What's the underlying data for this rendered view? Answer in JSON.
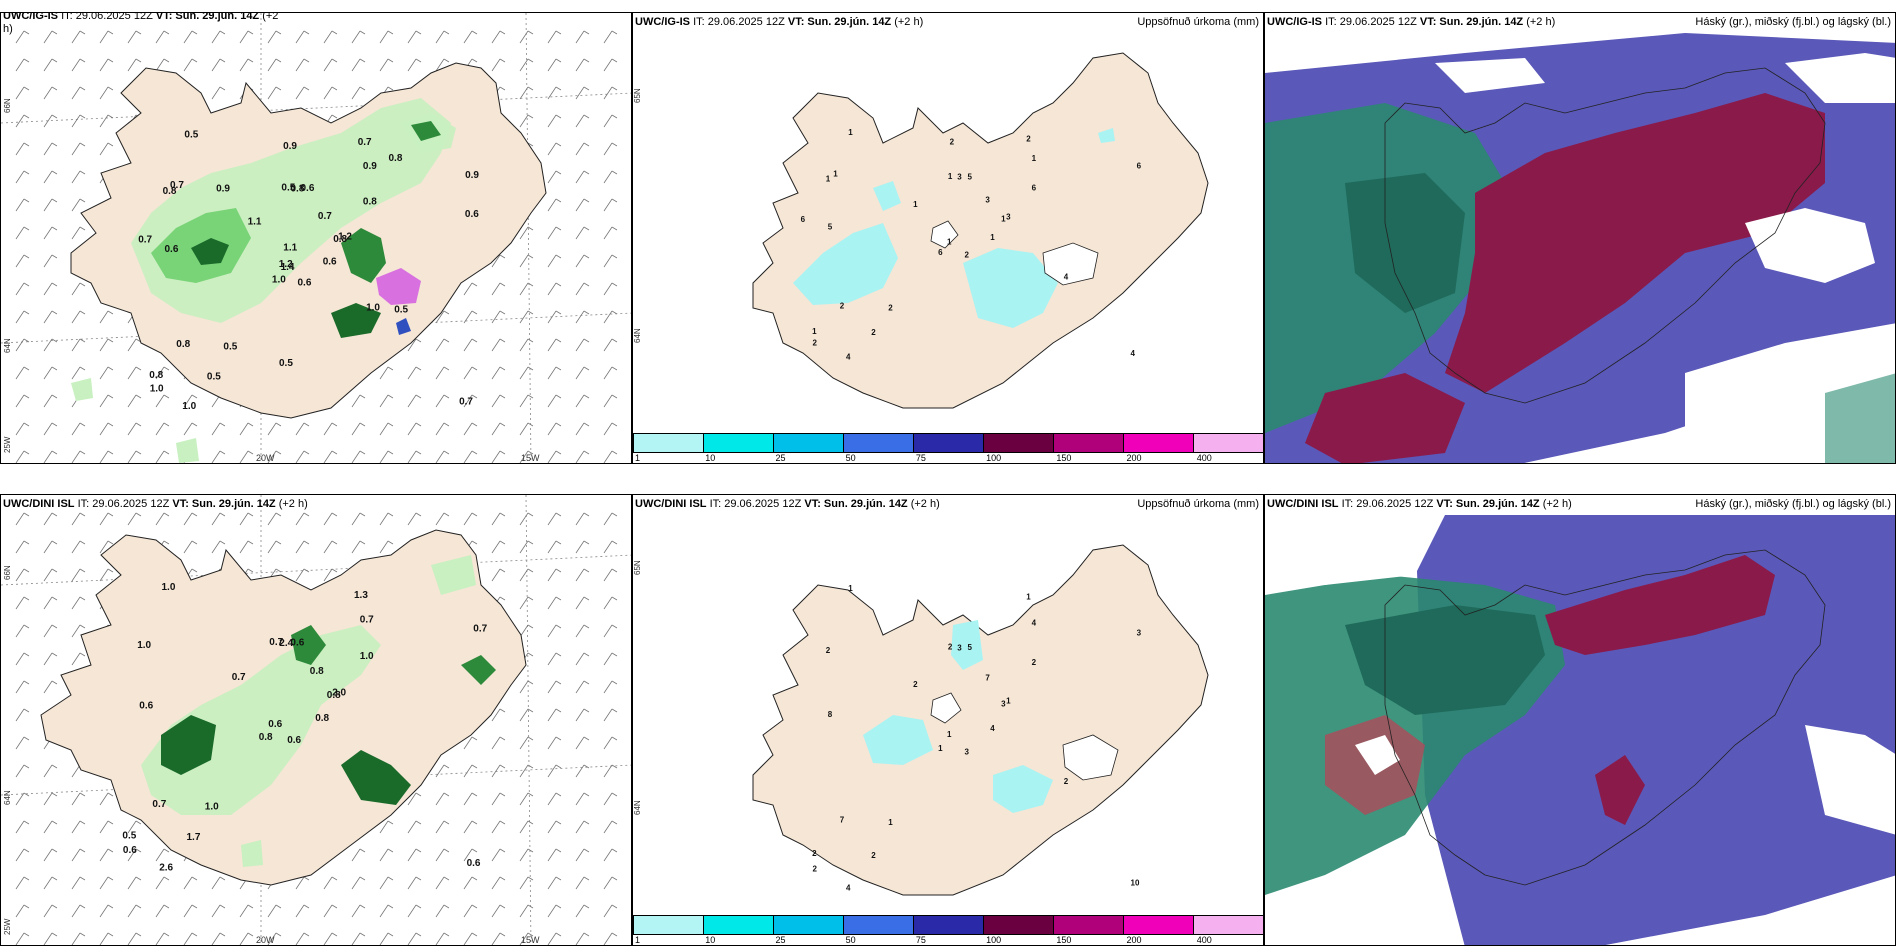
{
  "panels": {
    "p1": {
      "source": "UWC/IG-IS",
      "it": "IT: 29.06.2025 12Z",
      "vt": "VT: Sun. 29.jún. 14Z",
      "lead": "(+2",
      "lead2": "h)"
    },
    "p2": {
      "source": "UWC/IG-IS",
      "it": "IT: 29.06.2025 12Z",
      "vt": "VT: Sun. 29.jún. 14Z",
      "lead": "(+2 h)",
      "right": "Uppsöfnuð úrkoma (mm)"
    },
    "p3": {
      "source": "UWC/IG-IS",
      "it": "IT: 29.06.2025 12Z",
      "vt": "VT: Sun. 29.jún. 14Z",
      "lead": "(+2 h)",
      "right": "Háský (gr.), miðský (fj.bl.) og lágský (bl.)"
    },
    "p4": {
      "source": "UWC/DINI ISL",
      "it": "IT: 29.06.2025 12Z",
      "vt": "VT: Sun. 29.jún. 14Z",
      "lead": "(+2 h)"
    },
    "p5": {
      "source": "UWC/DINI ISL",
      "it": "IT: 29.06.2025 12Z",
      "vt": "VT: Sun. 29.jún. 14Z",
      "lead": "(+2 h)",
      "right": "Uppsöfnuð úrkoma (mm)"
    },
    "p6": {
      "source": "UWC/DINI ISL",
      "it": "IT: 29.06.2025 12Z",
      "vt": "VT: Sun. 29.jún. 14Z",
      "lead": "(+2 h)",
      "right": "Háský (gr.), miðský (fj.bl.) og lágský (bl.)"
    }
  },
  "axis_labels": {
    "lat66": "66N",
    "lat64": "64N",
    "lon20": "20W",
    "lon15": "15W",
    "lon25": "25W"
  },
  "colorbar": {
    "ticks": [
      "1",
      "10",
      "25",
      "50",
      "75",
      "100",
      "150",
      "200",
      "400"
    ],
    "colors": [
      "#b3f5f5",
      "#00e8e8",
      "#00bfe8",
      "#3a6ee6",
      "#2a2aa8",
      "#6a0040",
      "#b0007a",
      "#f000b8",
      "#f5b0f0"
    ]
  },
  "colors": {
    "land": "#f5e6d6",
    "rain_light": "#c8f0c0",
    "rain_mid": "#6fd06f",
    "rain_dark": "#1a6a2a",
    "precip_cyan": "#a9f3f3",
    "cloud_high": "#5a58b8",
    "cloud_mid": "#8a1a4a",
    "cloud_low": "#2a8a70"
  },
  "p1_values": [
    "0.6",
    "0.8",
    "1.4",
    "0.8",
    "0.8",
    "0.5",
    "0.7",
    "0.6",
    "0.9",
    "0.6",
    "0.5",
    "0.7",
    "0.6",
    "0.9",
    "1.0",
    "0.8",
    "1.0",
    "0.5",
    "0.7",
    "0.8",
    "1.1",
    "1.0",
    "0.5",
    "0.8",
    "1.2",
    "0.5",
    "0.7",
    "0.9",
    "0.7",
    "1.0",
    "0.6",
    "1.2",
    "0.5",
    "1.1",
    "0.9",
    "0.8"
  ],
  "p2_values": [
    "2",
    "1",
    "1",
    "1",
    "1",
    "2",
    "2",
    "5",
    "1",
    "1",
    "1",
    "4",
    "5",
    "6",
    "6",
    "6",
    "4",
    "1",
    "3",
    "2",
    "1",
    "2",
    "2",
    "3",
    "3",
    "4",
    "1",
    "2",
    "6"
  ],
  "p4_values": [
    "0.6",
    "1.0",
    "0.6",
    "0.5",
    "0.8",
    "1.0",
    "1.3",
    "0.6",
    "0.7",
    "0.8",
    "1.0",
    "0.6",
    "0.6",
    "0.7",
    "0.8",
    "1.0",
    "2.6",
    "0.7",
    "0.8",
    "0.7",
    "0.7",
    "0.6",
    "1.7",
    "2.4",
    "2.0"
  ],
  "p5_values": [
    "3",
    "2",
    "1",
    "2",
    "3",
    "1",
    "1",
    "5",
    "4",
    "4",
    "1",
    "10",
    "8",
    "3",
    "1",
    "2",
    "4",
    "2",
    "7",
    "7",
    "2",
    "2",
    "2",
    "3",
    "1",
    "2"
  ]
}
